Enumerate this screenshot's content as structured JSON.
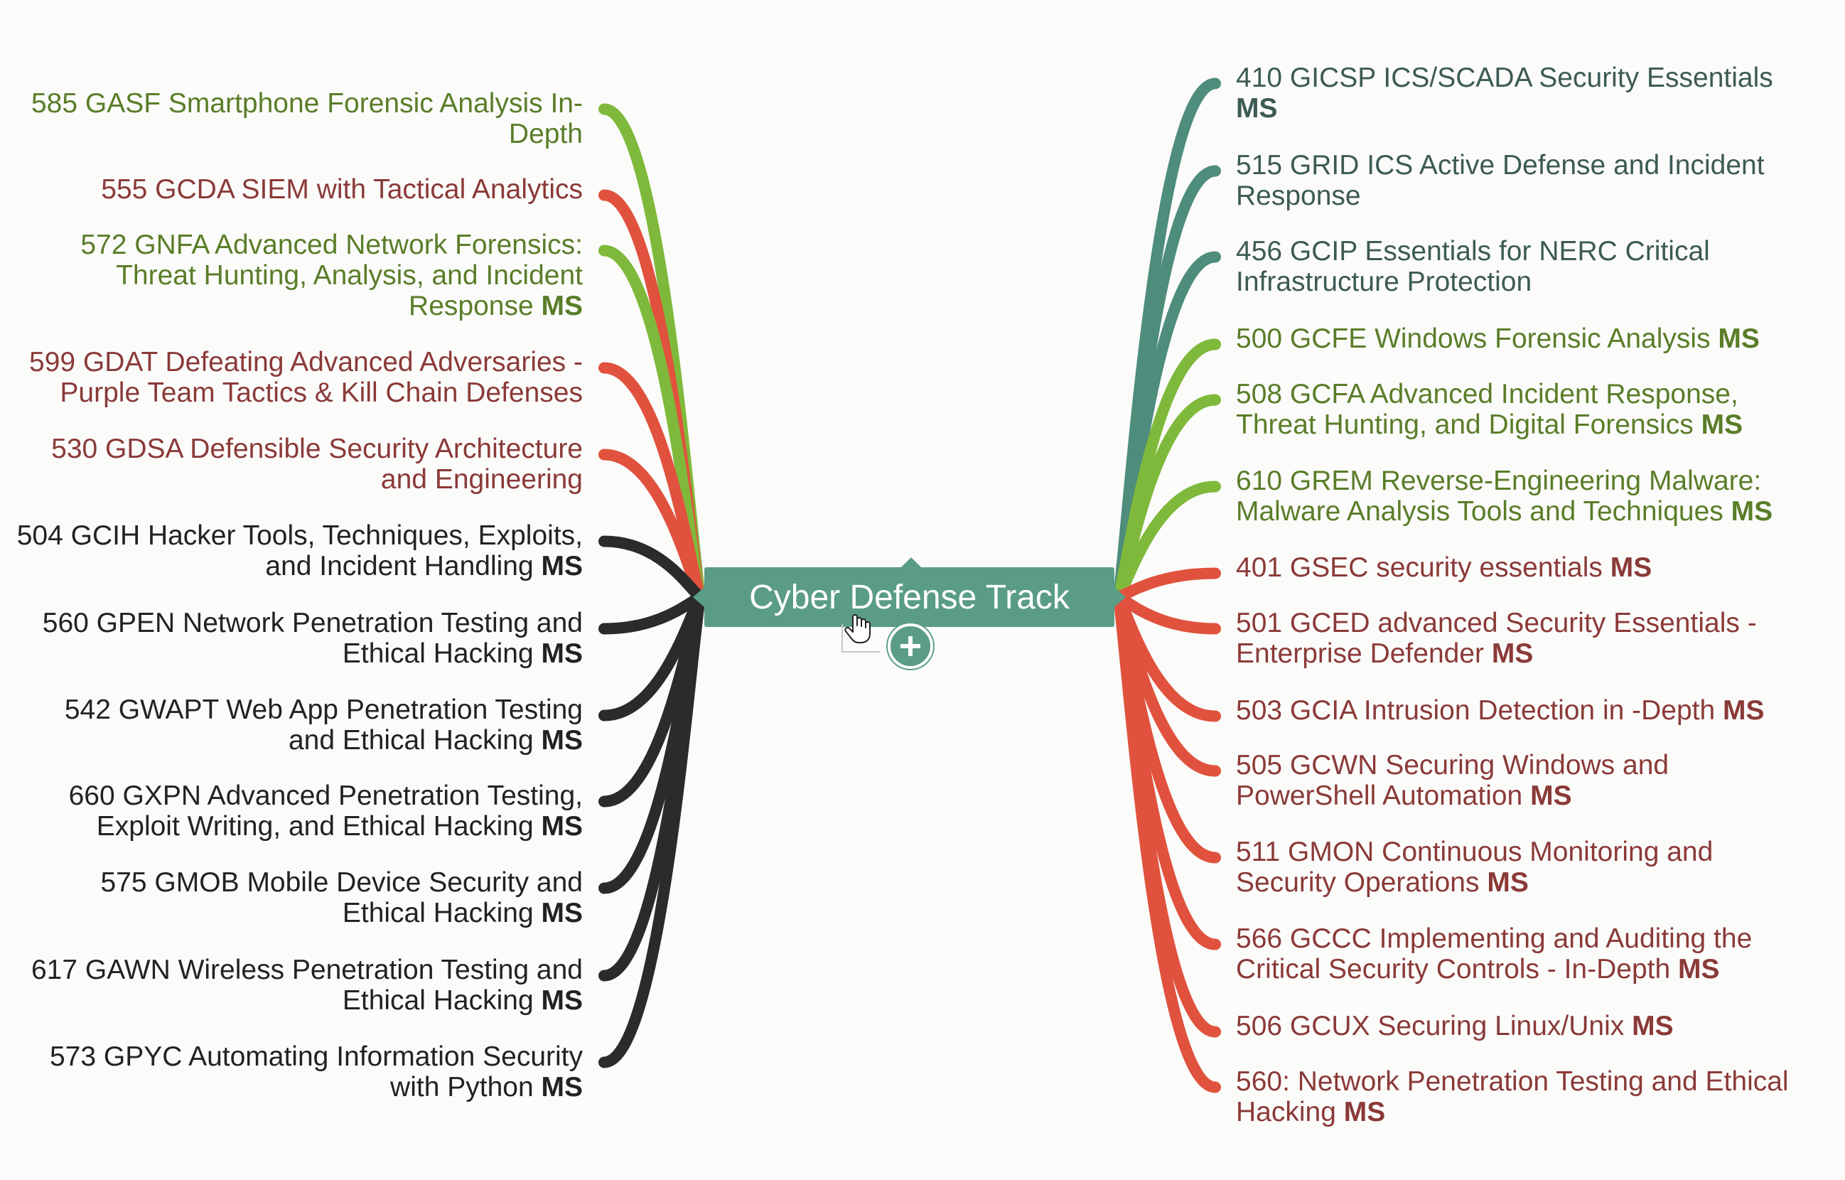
{
  "central": {
    "title": "Cyber Defense Track"
  },
  "colors": {
    "green": "#7fb93b",
    "red": "#e0523d",
    "black": "#2b2b2b",
    "teal": "#4e8c7c",
    "central_bg": "#5a9c88"
  },
  "left_topics": [
    {
      "lines": [
        "585 GASF Smartphone Forensic Analysis In-",
        "Depth"
      ],
      "ms": "",
      "color": "green"
    },
    {
      "lines": [
        "555 GCDA SIEM with Tactical Analytics"
      ],
      "ms": "",
      "color": "red"
    },
    {
      "lines": [
        "572 GNFA Advanced Network Forensics:",
        "Threat Hunting, Analysis, and Incident",
        "Response"
      ],
      "ms": "MS",
      "color": "green"
    },
    {
      "lines": [
        "599 GDAT Defeating Advanced Adversaries -",
        "Purple Team Tactics & Kill Chain Defenses"
      ],
      "ms": "",
      "color": "red"
    },
    {
      "lines": [
        "530 GDSA Defensible Security Architecture",
        "and Engineering"
      ],
      "ms": "",
      "color": "red"
    },
    {
      "lines": [
        "504 GCIH Hacker Tools, Techniques, Exploits,",
        "and Incident Handling"
      ],
      "ms": "MS",
      "color": "black"
    },
    {
      "lines": [
        "560 GPEN Network Penetration Testing and",
        "Ethical Hacking"
      ],
      "ms": "MS",
      "color": "black"
    },
    {
      "lines": [
        "542 GWAPT Web App Penetration Testing",
        "and Ethical Hacking"
      ],
      "ms": "MS",
      "color": "black"
    },
    {
      "lines": [
        "660 GXPN Advanced Penetration Testing,",
        "Exploit Writing, and Ethical Hacking"
      ],
      "ms": "MS",
      "color": "black"
    },
    {
      "lines": [
        "575 GMOB Mobile Device Security and",
        "Ethical Hacking"
      ],
      "ms": "MS",
      "color": "black"
    },
    {
      "lines": [
        "617 GAWN Wireless Penetration Testing and",
        "Ethical Hacking"
      ],
      "ms": "MS",
      "color": "black"
    },
    {
      "lines": [
        "573 GPYC Automating Information Security",
        "with Python"
      ],
      "ms": "MS",
      "color": "black"
    }
  ],
  "right_topics": [
    {
      "lines": [
        "410 GICSP ICS/SCADA Security Essentials",
        ""
      ],
      "ms": "MS",
      "color": "teal"
    },
    {
      "lines": [
        "515 GRID ICS Active Defense and Incident",
        "Response"
      ],
      "ms": "",
      "color": "teal"
    },
    {
      "lines": [
        "456 GCIP Essentials for NERC Critical",
        "Infrastructure Protection"
      ],
      "ms": "",
      "color": "teal"
    },
    {
      "lines": [
        "500 GCFE Windows Forensic Analysis"
      ],
      "ms": "MS",
      "color": "green"
    },
    {
      "lines": [
        "508 GCFA Advanced Incident Response,",
        "Threat Hunting, and Digital Forensics"
      ],
      "ms": "MS",
      "color": "green"
    },
    {
      "lines": [
        "610 GREM Reverse-Engineering Malware:",
        "Malware Analysis Tools and Techniques"
      ],
      "ms": "MS",
      "color": "green"
    },
    {
      "lines": [
        "401 GSEC security essentials"
      ],
      "ms": "MS",
      "color": "red"
    },
    {
      "lines": [
        "501 GCED advanced Security Essentials -",
        "Enterprise Defender"
      ],
      "ms": "MS",
      "color": "red"
    },
    {
      "lines": [
        "503 GCIA Intrusion Detection in -Depth"
      ],
      "ms": "MS",
      "color": "red"
    },
    {
      "lines": [
        "505 GCWN Securing Windows and",
        "PowerShell Automation"
      ],
      "ms": "MS",
      "color": "red"
    },
    {
      "lines": [
        "511 GMON Continuous Monitoring and",
        "Security Operations"
      ],
      "ms": "MS",
      "color": "red"
    },
    {
      "lines": [
        "566 GCCC Implementing and Auditing the",
        "Critical Security Controls - In-Depth"
      ],
      "ms": "MS",
      "color": "red"
    },
    {
      "lines": [
        "506 GCUX Securing Linux/Unix"
      ],
      "ms": "MS",
      "color": "red"
    },
    {
      "lines": [
        "560: Network Penetration Testing and Ethical",
        "Hacking"
      ],
      "ms": "MS",
      "color": "red"
    }
  ]
}
